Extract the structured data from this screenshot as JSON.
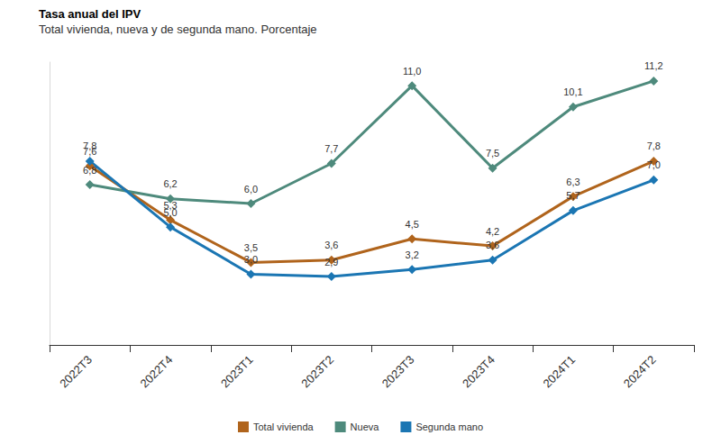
{
  "chart_data": {
    "type": "line",
    "title": "Tasa anual del IPV",
    "subtitle": "Total vivienda, nueva y de segunda mano. Porcentaje",
    "categories": [
      "2022T3",
      "2022T4",
      "2023T1",
      "2023T2",
      "2023T3",
      "2023T4",
      "2024T1",
      "2024T2"
    ],
    "series": [
      {
        "name": "Total vivienda",
        "color": "#b0641c",
        "values": [
          7.6,
          5.3,
          3.5,
          3.6,
          4.5,
          4.2,
          6.3,
          7.8
        ],
        "value_labels": [
          "7,6",
          "5,3",
          "3,5",
          "3,6",
          "4,5",
          "4,2",
          "6,3",
          "7,8"
        ]
      },
      {
        "name": "Nueva",
        "color": "#4e8a7c",
        "values": [
          6.8,
          6.2,
          6.0,
          7.7,
          11.0,
          7.5,
          10.1,
          11.2
        ],
        "value_labels": [
          "6,8",
          "6,2",
          "6,0",
          "7,7",
          "11,0",
          "7,5",
          "10,1",
          "11,2"
        ]
      },
      {
        "name": "Segunda mano",
        "color": "#1b76b3",
        "values": [
          7.8,
          5.0,
          3.0,
          2.9,
          3.2,
          3.6,
          5.7,
          7.0
        ],
        "value_labels": [
          "7,8",
          "5,0",
          "3,0",
          "2,9",
          "3,2",
          "3,6",
          "5,7",
          "7,0"
        ]
      }
    ],
    "ylim": [
      0,
      12
    ],
    "grid": false,
    "legend": "bottom",
    "data_labels": true,
    "tick_labels": "x",
    "marker": "diamond",
    "line_style": "solid"
  }
}
